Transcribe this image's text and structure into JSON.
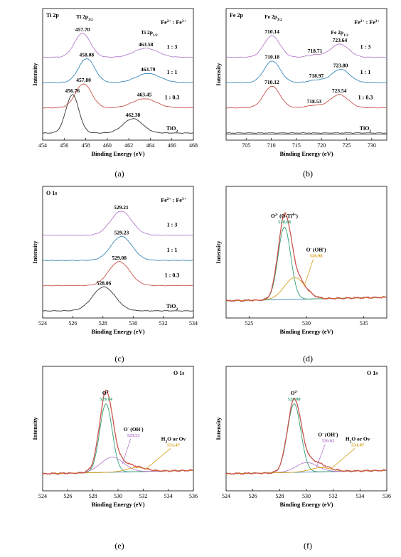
{
  "chart_data": [
    {
      "id": "a",
      "type": "line",
      "caption": "(a)",
      "title": "Ti 2p",
      "xlabel": "Binding Energy (eV)",
      "ylabel": "Intensity",
      "xlim": [
        454,
        468
      ],
      "xticks": [
        454,
        456,
        458,
        460,
        462,
        464,
        466,
        468
      ],
      "xreverse": false,
      "legend_title": "Fe2+ : Fe3+",
      "peak_labels": [
        "Ti 2p3/2",
        "Ti 2p1/2"
      ],
      "series": [
        {
          "ratio_label": "1 : 3",
          "color": "#b57fcc",
          "offset": 3,
          "peaks": [
            {
              "c": 457.7,
              "a": 1.0,
              "w": 0.75
            },
            {
              "c": 463.58,
              "a": 0.38,
              "w": 1.1
            }
          ],
          "annotations": [
            457.7,
            463.58
          ]
        },
        {
          "ratio_label": "1 : 1",
          "color": "#3a88b8",
          "offset": 2,
          "peaks": [
            {
              "c": 458.08,
              "a": 1.0,
              "w": 0.75
            },
            {
              "c": 463.79,
              "a": 0.38,
              "w": 1.1
            }
          ],
          "annotations": [
            458.08,
            463.79
          ]
        },
        {
          "ratio_label": "1 : 0.3",
          "color": "#c9544c",
          "offset": 1,
          "peaks": [
            {
              "c": 457.8,
              "a": 1.0,
              "w": 0.75
            },
            {
              "c": 463.45,
              "a": 0.38,
              "w": 1.1
            }
          ],
          "annotations": [
            457.8,
            463.45
          ]
        },
        {
          "ratio_label": "TiO2",
          "color": "#333333",
          "offset": 0,
          "peaks": [
            {
              "c": 456.76,
              "a": 1.6,
              "w": 0.6
            },
            {
              "c": 462.38,
              "a": 0.6,
              "w": 0.9
            }
          ],
          "annotations": [
            456.76,
            462.38
          ]
        }
      ]
    },
    {
      "id": "b",
      "type": "line",
      "caption": "(b)",
      "title": "Fe 2p",
      "xlabel": "Binding Energy (eV)",
      "ylabel": "Intensity",
      "xlim": [
        701,
        733
      ],
      "xticks": [
        705,
        710,
        715,
        720,
        725,
        730
      ],
      "xreverse": false,
      "legend_title": "Fe2+ : Fe3+",
      "peak_labels": [
        "Fe 2p3/2",
        "Fe 2p1/2"
      ],
      "series": [
        {
          "ratio_label": "1 : 3",
          "color": "#b57fcc",
          "offset": 3,
          "peaks": [
            {
              "c": 710.14,
              "a": 0.9,
              "w": 1.6
            },
            {
              "c": 723.64,
              "a": 0.55,
              "w": 1.8
            },
            {
              "c": 718.71,
              "a": 0.1,
              "w": 1.5
            }
          ],
          "annotations": [
            710.14,
            718.71,
            723.64
          ]
        },
        {
          "ratio_label": "1 : 1",
          "color": "#3a88b8",
          "offset": 2,
          "peaks": [
            {
              "c": 710.18,
              "a": 0.9,
              "w": 1.6
            },
            {
              "c": 723.8,
              "a": 0.55,
              "w": 1.8
            },
            {
              "c": 718.97,
              "a": 0.1,
              "w": 1.5
            }
          ],
          "annotations": [
            710.18,
            718.97,
            723.8
          ]
        },
        {
          "ratio_label": "1 : 0.3",
          "color": "#c9544c",
          "offset": 1,
          "peaks": [
            {
              "c": 710.12,
              "a": 0.9,
              "w": 1.6
            },
            {
              "c": 723.54,
              "a": 0.55,
              "w": 1.8
            },
            {
              "c": 718.53,
              "a": 0.1,
              "w": 1.5
            }
          ],
          "annotations": [
            710.12,
            718.53,
            723.54
          ]
        },
        {
          "ratio_label": "TiO2",
          "color": "#333333",
          "offset": 0,
          "peaks": [],
          "annotations": []
        }
      ]
    },
    {
      "id": "c",
      "type": "line",
      "caption": "(c)",
      "title": "O 1s",
      "xlabel": "Binding Energy (eV)",
      "ylabel": "Intensity",
      "xlim": [
        524,
        534
      ],
      "xticks": [
        524,
        526,
        528,
        530,
        532,
        534
      ],
      "xreverse": false,
      "legend_title": "Fe2+ : Fe3+",
      "series": [
        {
          "ratio_label": "1 : 3",
          "color": "#b57fcc",
          "offset": 3,
          "peaks": [
            {
              "c": 529.21,
              "a": 1.0,
              "w": 0.7
            }
          ],
          "annotations": [
            529.21
          ]
        },
        {
          "ratio_label": "1 : 1",
          "color": "#3a88b8",
          "offset": 2,
          "peaks": [
            {
              "c": 529.23,
              "a": 1.0,
              "w": 0.7
            }
          ],
          "annotations": [
            529.23
          ]
        },
        {
          "ratio_label": "1 : 0.3",
          "color": "#c9544c",
          "offset": 1,
          "peaks": [
            {
              "c": 529.08,
              "a": 1.0,
              "w": 0.7
            }
          ],
          "annotations": [
            529.08
          ]
        },
        {
          "ratio_label": "TiO2",
          "color": "#333333",
          "offset": 0,
          "peaks": [
            {
              "c": 528.06,
              "a": 1.0,
              "w": 0.75
            }
          ],
          "annotations": [
            528.06
          ]
        }
      ]
    },
    {
      "id": "d",
      "type": "line",
      "caption": "(d)",
      "title": "",
      "xlabel": "Binding Energy (eV)",
      "ylabel": "Intensity",
      "xlim": [
        523,
        537
      ],
      "xticks": [
        525,
        530,
        535
      ],
      "xreverse": false,
      "components": [
        {
          "name": "O2- (O-Ti4+)",
          "value": 528.08,
          "color": "#2f9e6e",
          "c": 528.08,
          "a": 1.0,
          "w": 0.55
        },
        {
          "name": "O- (OH-)",
          "value": 528.98,
          "color": "#d4a017",
          "c": 528.98,
          "a": 0.3,
          "w": 0.9
        }
      ],
      "envelope_color": "#c9544c",
      "background_color": "#3a88b8"
    },
    {
      "id": "e",
      "type": "line",
      "caption": "(e)",
      "title": "O 1s",
      "xlabel": "Binding Energy (eV)",
      "ylabel": "Intensity",
      "xlim": [
        524,
        536
      ],
      "xticks": [
        524,
        526,
        528,
        530,
        532,
        534,
        536
      ],
      "xreverse": false,
      "components": [
        {
          "name": "O2-",
          "value": 529.04,
          "color": "#2f9e6e",
          "c": 529.04,
          "a": 1.0,
          "w": 0.5
        },
        {
          "name": "O- (OH-)",
          "value": 529.53,
          "color": "#b57fcc",
          "c": 529.53,
          "a": 0.22,
          "w": 0.9
        },
        {
          "name": "H2O or Ov",
          "value": 531.47,
          "color": "#d4a017",
          "c": 531.47,
          "a": 0.06,
          "w": 0.8
        }
      ],
      "envelope_color": "#c9544c",
      "background_color": "#3a88b8"
    },
    {
      "id": "f",
      "type": "line",
      "caption": "(f)",
      "title": "O 1s",
      "xlabel": "Binding Energy (eV)",
      "ylabel": "Intensity",
      "xlim": [
        524,
        536
      ],
      "xticks": [
        524,
        526,
        528,
        530,
        532,
        534,
        536
      ],
      "xreverse": false,
      "components": [
        {
          "name": "O2-",
          "value": 529.08,
          "color": "#2f9e6e",
          "c": 529.08,
          "a": 1.0,
          "w": 0.5
        },
        {
          "name": "O- (OH-)",
          "value": 530.02,
          "color": "#b57fcc",
          "c": 530.02,
          "a": 0.14,
          "w": 0.8
        },
        {
          "name": "H2O or Ov",
          "value": 531.07,
          "color": "#d4a017",
          "c": 531.07,
          "a": 0.06,
          "w": 0.8
        }
      ],
      "envelope_color": "#c9544c",
      "background_color": "#3a88b8"
    }
  ]
}
